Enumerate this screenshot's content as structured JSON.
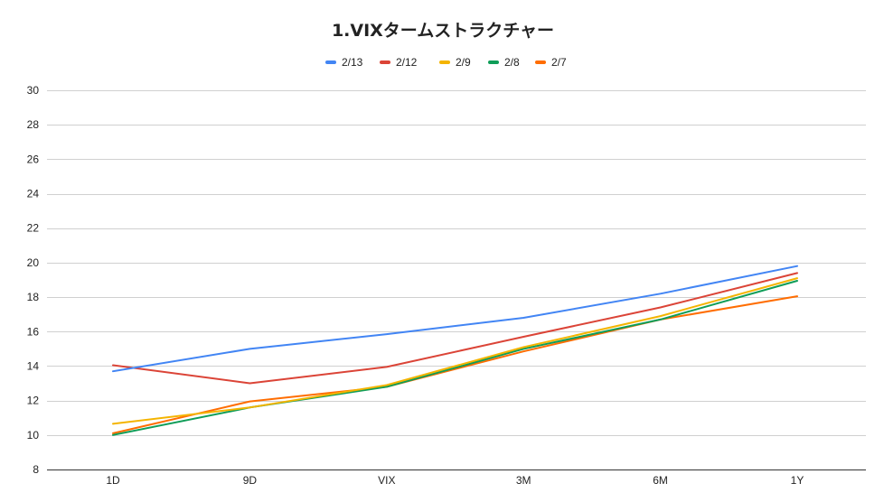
{
  "chart_data": {
    "type": "line",
    "title": "1.VIXタームストラクチャー",
    "xlabel": "",
    "ylabel": "",
    "categories": [
      "1D",
      "9D",
      "VIX",
      "3M",
      "6M",
      "1Y"
    ],
    "ylim": [
      8,
      30
    ],
    "yticks": [
      8,
      10,
      12,
      14,
      16,
      18,
      20,
      22,
      24,
      26,
      28,
      30
    ],
    "grid": true,
    "legend_position": "top",
    "series": [
      {
        "name": "2/13",
        "color": "#4285f4",
        "values": [
          13.7,
          15.0,
          15.85,
          16.8,
          18.2,
          19.8
        ]
      },
      {
        "name": "2/12",
        "color": "#db4437",
        "values": [
          14.05,
          13.0,
          13.95,
          15.7,
          17.4,
          19.4
        ]
      },
      {
        "name": "2/9",
        "color": "#f4b400",
        "values": [
          10.65,
          11.6,
          12.9,
          15.1,
          16.9,
          19.1
        ]
      },
      {
        "name": "2/8",
        "color": "#0f9d58",
        "values": [
          10.0,
          11.6,
          12.8,
          15.0,
          16.7,
          18.95
        ]
      },
      {
        "name": "2/7",
        "color": "#ff6d01",
        "values": [
          10.1,
          11.95,
          12.8,
          14.85,
          16.7,
          18.05
        ]
      }
    ]
  }
}
